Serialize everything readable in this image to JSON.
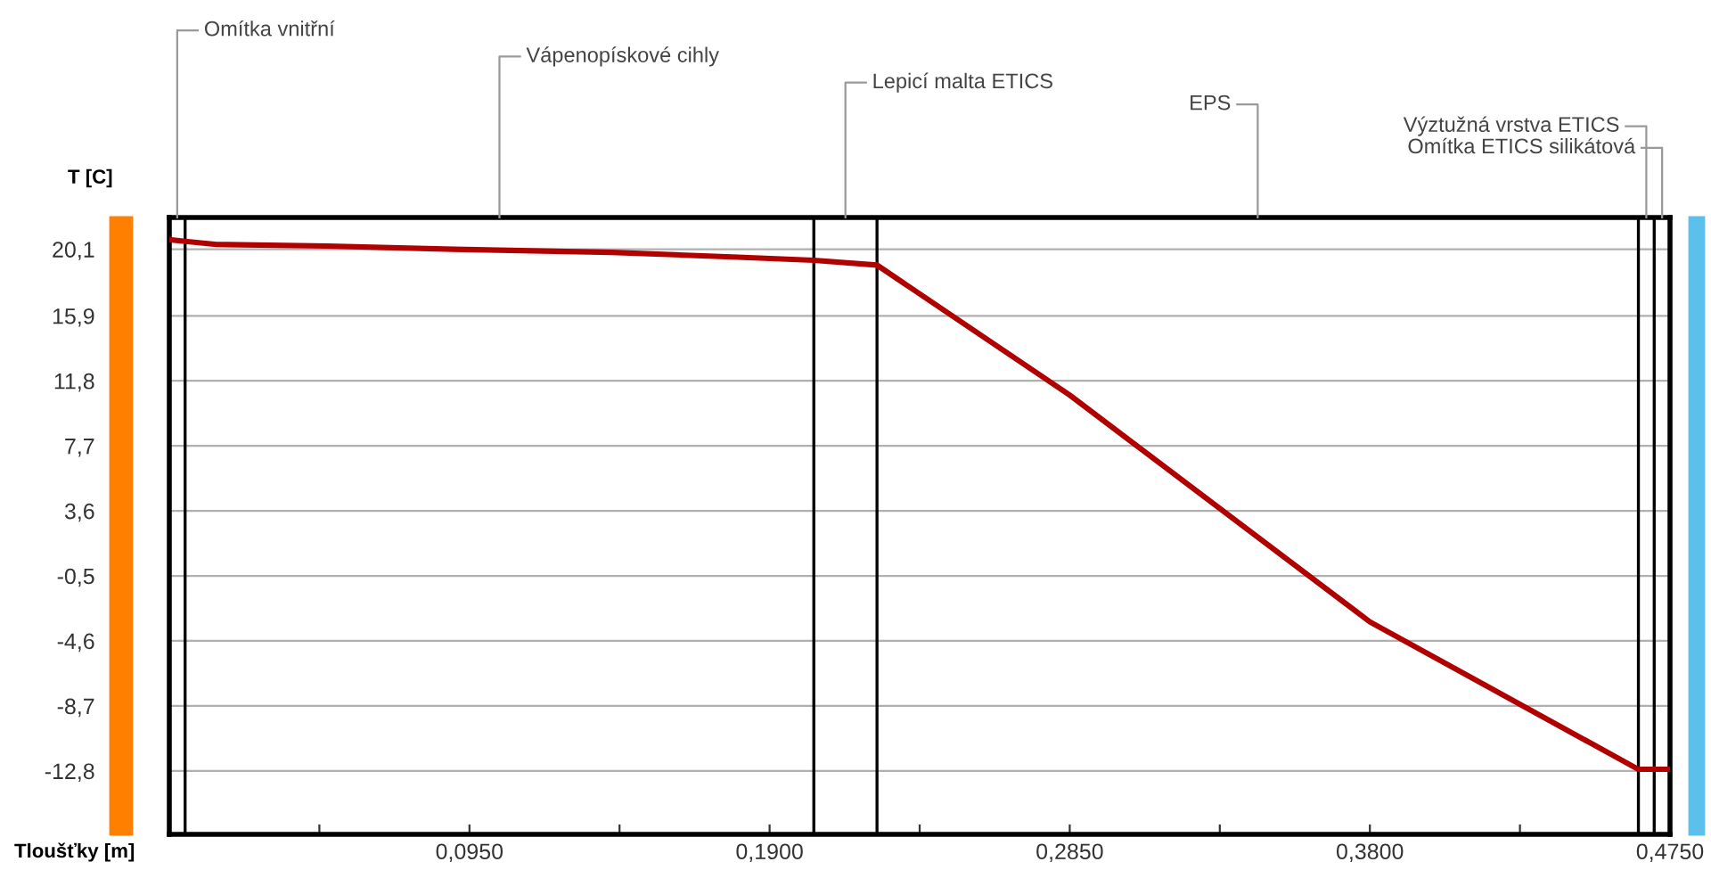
{
  "chart_data": {
    "type": "line",
    "xlabel": "Tloušťky [m]",
    "ylabel": "T [C]",
    "x": [
      0,
      0.005,
      0.015,
      0.05,
      0.09,
      0.14,
      0.18,
      0.204,
      0.224,
      0.285,
      0.38,
      0.465,
      0.47,
      0.475
    ],
    "series": [
      {
        "color": "#b00000",
        "values": [
          20.7,
          20.6,
          20.4,
          20.3,
          20.1,
          19.9,
          19.6,
          19.4,
          19.1,
          10.9,
          -3.4,
          -12.7,
          -12.7,
          -12.7
        ]
      }
    ],
    "xlim": [
      0,
      0.475
    ],
    "ylim": [
      -16.8,
      22.1
    ],
    "xticks": [
      {
        "value": 0.0475,
        "label": null
      },
      {
        "value": 0.095,
        "label": "0,0950"
      },
      {
        "value": 0.1425,
        "label": null
      },
      {
        "value": 0.19,
        "label": "0,1900"
      },
      {
        "value": 0.2375,
        "label": null
      },
      {
        "value": 0.285,
        "label": "0,2850"
      },
      {
        "value": 0.3325,
        "label": null
      },
      {
        "value": 0.38,
        "label": "0,3800"
      },
      {
        "value": 0.4275,
        "label": null
      },
      {
        "value": 0.475,
        "label": "0,4750"
      }
    ],
    "yticks": [
      {
        "value": 20.1,
        "label": "20,1"
      },
      {
        "value": 15.9,
        "label": "15,9"
      },
      {
        "value": 11.8,
        "label": "11,8"
      },
      {
        "value": 7.7,
        "label": "7,7"
      },
      {
        "value": 3.6,
        "label": "3,6"
      },
      {
        "value": -0.5,
        "label": "-0,5"
      },
      {
        "value": -4.6,
        "label": "-4,6"
      },
      {
        "value": -8.7,
        "label": "-8,7"
      },
      {
        "value": -12.8,
        "label": "-12,8"
      }
    ],
    "ref_lines": [
      {
        "axis": "x",
        "value": 0.005
      },
      {
        "axis": "x",
        "value": 0.204
      },
      {
        "axis": "x",
        "value": 0.224
      },
      {
        "axis": "x",
        "value": 0.465
      },
      {
        "axis": "x",
        "value": 0.47
      }
    ],
    "annotations": [
      "Omítka vnitřní",
      "Vápenopískové cihly",
      "Lepicí malta ETICS",
      "EPS",
      "Výztužná vrstva ETICS",
      "Omítka ETICS silikátová"
    ],
    "grid": "y",
    "marker": "none",
    "line_style": "solid"
  }
}
